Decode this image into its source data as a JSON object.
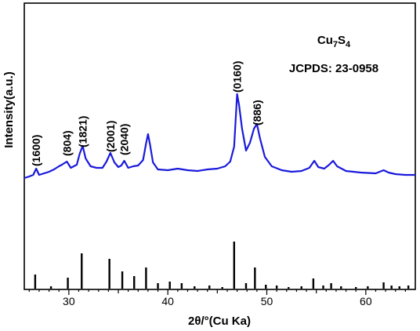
{
  "chart_data": {
    "type": "line",
    "xlabel": "2θ/°(Cu Ka)",
    "ylabel": "Intensity(a.u.)",
    "xlim": [
      25.5,
      65
    ],
    "x_ticks": [
      30,
      40,
      50,
      60
    ],
    "grid": false,
    "annotation_lines": [
      {
        "parts": [
          {
            "text": "Cu"
          },
          {
            "text": "7",
            "sub": true
          },
          {
            "text": "S"
          },
          {
            "text": "4",
            "sub": true
          }
        ]
      },
      {
        "parts": [
          {
            "text": "JCPDS: 23-0958"
          }
        ]
      }
    ],
    "series": [
      {
        "color": "#1a1adb",
        "x": [
          25.5,
          26.0,
          26.4,
          26.7,
          27.0,
          27.5,
          28.0,
          28.5,
          29.0,
          29.3,
          29.8,
          30.2,
          30.8,
          31.1,
          31.4,
          31.7,
          32.2,
          32.8,
          33.4,
          33.8,
          34.2,
          34.6,
          35.0,
          35.3,
          35.6,
          36.0,
          36.5,
          37.0,
          37.5,
          37.8,
          38.0,
          38.2,
          38.5,
          39.0,
          40.0,
          41.0,
          41.5,
          42.0,
          43.0,
          44.0,
          45.0,
          45.8,
          46.3,
          46.7,
          47.0,
          47.2,
          47.5,
          47.9,
          48.3,
          48.7,
          49.0,
          49.3,
          49.8,
          50.5,
          51.5,
          52.5,
          53.5,
          54.3,
          54.8,
          55.2,
          55.8,
          56.3,
          56.7,
          57.1,
          58.0,
          59.5,
          61.0,
          61.8,
          62.3,
          63.0,
          64.0,
          65.0
        ],
        "y": [
          5,
          7,
          9,
          17,
          9,
          11,
          13,
          16,
          20,
          22,
          26,
          18,
          22,
          36,
          46,
          30,
          20,
          18,
          18,
          26,
          37,
          25,
          19,
          21,
          27,
          18,
          20,
          21,
          28,
          49,
          61,
          48,
          25,
          16,
          15,
          17,
          16,
          15,
          14,
          16,
          17,
          20,
          26,
          45,
          112,
          98,
          68,
          40,
          50,
          68,
          74,
          56,
          32,
          20,
          15,
          13,
          14,
          18,
          27,
          19,
          17,
          22,
          27,
          20,
          14,
          12,
          11,
          15,
          12,
          10,
          9,
          9
        ]
      },
      {
        "type": "stem",
        "color": "#000000",
        "x": [
          26.6,
          28.2,
          29.9,
          31.3,
          34.1,
          35.4,
          36.6,
          37.8,
          39.0,
          40.2,
          41.4,
          42.7,
          44.2,
          45.5,
          46.7,
          47.9,
          48.8,
          49.9,
          51.0,
          52.2,
          53.5,
          54.7,
          55.7,
          56.5,
          57.5,
          59.0,
          60.2,
          61.8,
          62.6,
          63.4,
          64.3
        ],
        "y": [
          18,
          3,
          14,
          45,
          38,
          22,
          16,
          27,
          7,
          9,
          7,
          3,
          4,
          2,
          60,
          7,
          27,
          5,
          4,
          2,
          3,
          13,
          4,
          7,
          3,
          2,
          3,
          8,
          4,
          3,
          4
        ]
      }
    ],
    "peak_labels": [
      {
        "label": "(1600)",
        "x": 26.7
      },
      {
        "label": "(804)",
        "x": 29.8
      },
      {
        "label": "(1821)",
        "x": 31.4
      },
      {
        "label": "(2001)",
        "x": 34.2
      },
      {
        "label": "(2040)",
        "x": 35.6
      },
      {
        "label": "(0160)",
        "x": 47.0
      },
      {
        "label": "(886)",
        "x": 49.0
      }
    ]
  }
}
